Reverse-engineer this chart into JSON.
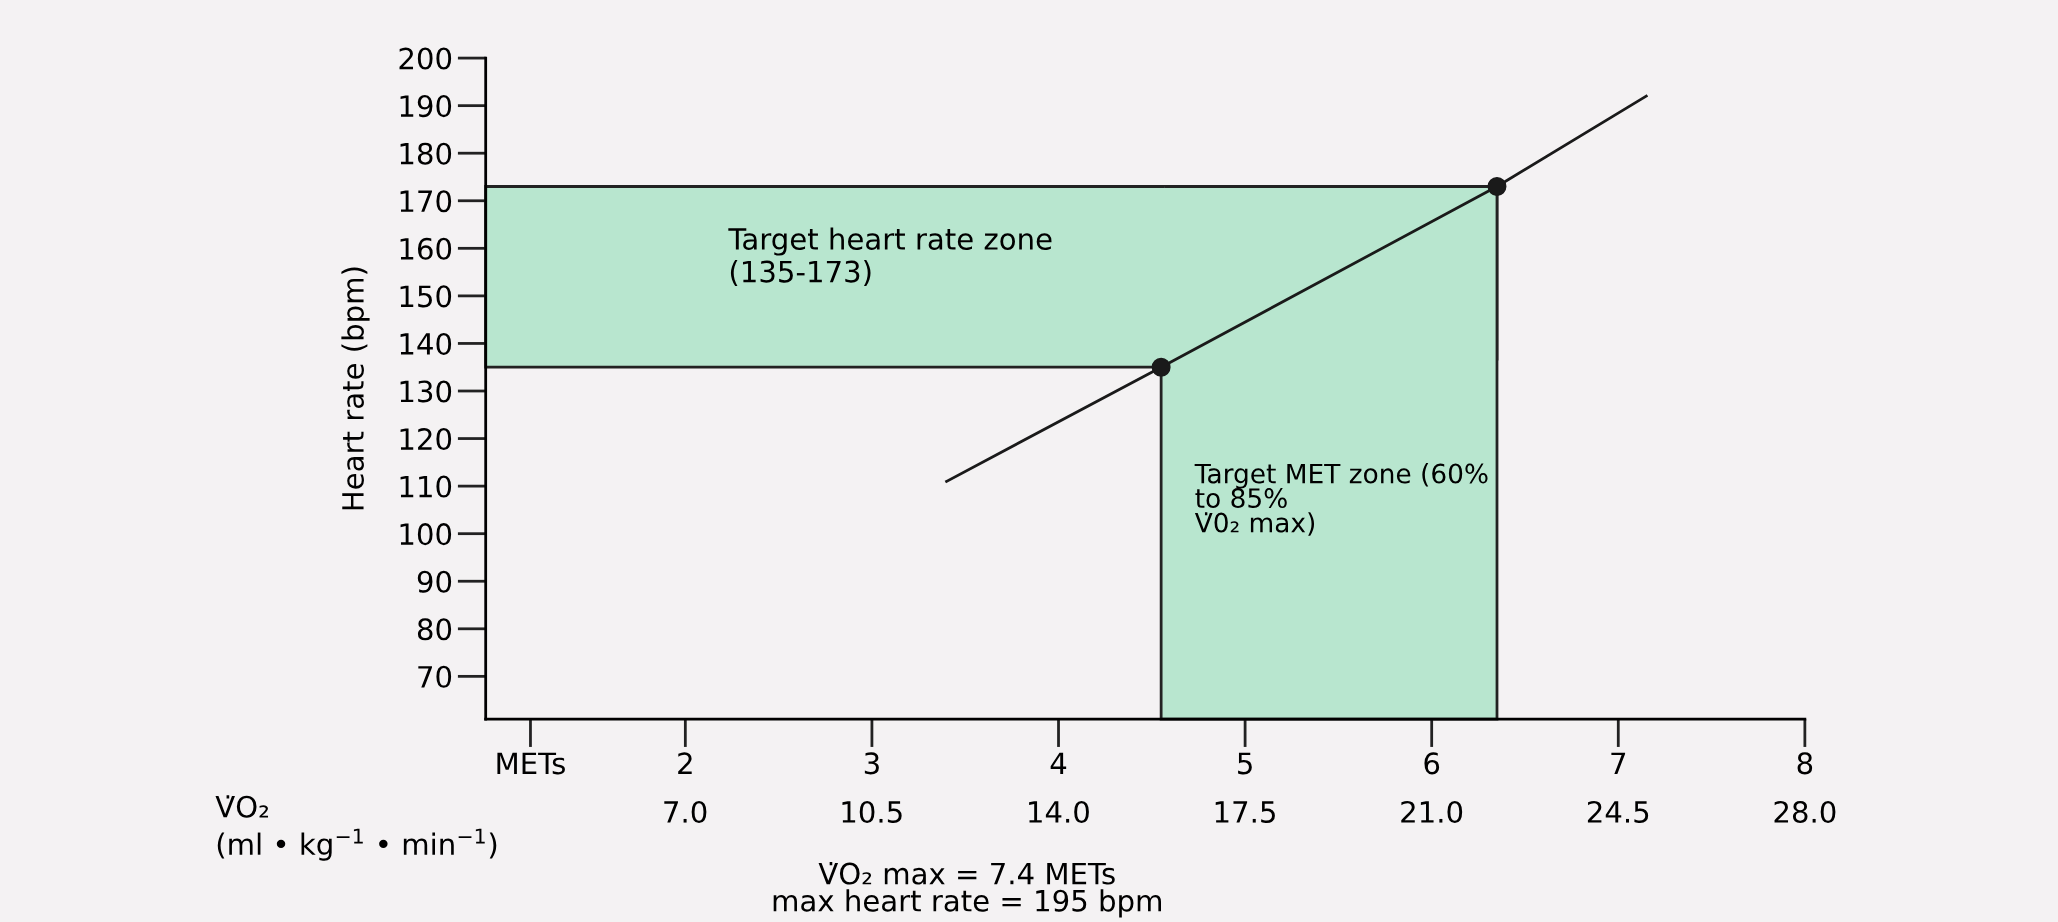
{
  "chart_data": {
    "type": "line",
    "ylabel": "Heart rate (bpm)",
    "x2label": "V̇O₂\n(ml • kg$^{−1}$ • min$^{−1}$)",
    "xlim": [
      0.93,
      8
    ],
    "xticks": [
      {
        "value": 1.17,
        "label": "METs"
      },
      2,
      3,
      4,
      5,
      6,
      7,
      8
    ],
    "x2lim": [
      3.26,
      28.0
    ],
    "x2ticks": [
      {
        "value": 7,
        "label": "7.0"
      },
      {
        "value": 10.5,
        "label": "10.5"
      },
      {
        "value": 14,
        "label": "14.0"
      },
      {
        "value": 17.5,
        "label": "17.5"
      },
      {
        "value": 21,
        "label": "21.0"
      },
      {
        "value": 24.5,
        "label": "24.5"
      },
      {
        "value": 28,
        "label": "28.0"
      }
    ],
    "ylim": [
      61,
      200
    ],
    "yticks": [
      70,
      80,
      90,
      100,
      110,
      120,
      130,
      140,
      150,
      160,
      170,
      180,
      190,
      200
    ],
    "series": [
      {
        "color": "#1a1a1a",
        "x": [
          3.4,
          4.55,
          6.35,
          7.15
        ],
        "values": [
          111,
          135,
          173,
          192
        ]
      },
      {
        "type": "scatter",
        "color": "#1a1a1a",
        "marker": "circle",
        "x": [
          4.55,
          6.35
        ],
        "values": [
          135,
          173
        ]
      }
    ],
    "bands": [
      {
        "axis": "y",
        "from": 135,
        "to": 173,
        "label": "Target heart rate zone\n(135-173)",
        "color": "#b8e6cf"
      },
      {
        "axis": "x",
        "from": 4.55,
        "to": 6.35,
        "label": "Target MET zone (60%\nto 85%\nV̇0₂ max)",
        "color": "#b8e6cf"
      }
    ],
    "annotations": [
      "V̇O₂ max = 7.4 METs\nmax heart rate = 195 bpm"
    ],
    "grid": false,
    "legend": false
  }
}
